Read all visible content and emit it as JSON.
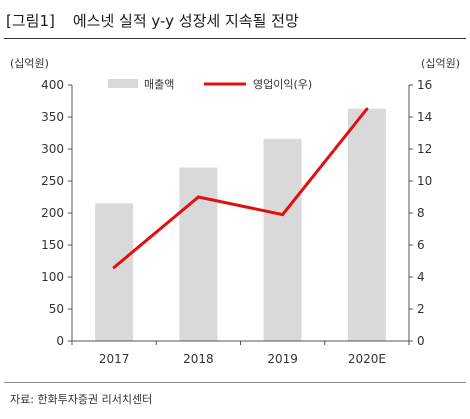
{
  "header": {
    "tag": "[그림1]",
    "title": "에스넷 실적 y-y 성장세 지속될 전망"
  },
  "source": "자료: 한화투자증권 리서치센터",
  "chart_data": {
    "type": "bar",
    "categories": [
      "2017",
      "2018",
      "2019",
      "2020E"
    ],
    "series": [
      {
        "name": "매출액",
        "type": "bar",
        "axis": "left",
        "color": "#d9d9d9",
        "values": [
          215,
          271,
          316,
          363
        ]
      },
      {
        "name": "영업이익(우)",
        "type": "line",
        "axis": "right",
        "color": "#e01010",
        "values": [
          4.6,
          9.0,
          7.9,
          14.5
        ]
      }
    ],
    "y_left": {
      "unit": "(십억원)",
      "ylim": [
        0,
        400
      ],
      "ticks": [
        0,
        50,
        100,
        150,
        200,
        250,
        300,
        350,
        400
      ]
    },
    "y_right": {
      "unit": "(십억원)",
      "ylim": [
        0,
        16
      ],
      "ticks": [
        0,
        2,
        4,
        6,
        8,
        10,
        12,
        14,
        16
      ]
    },
    "legend": "top",
    "grid": false
  }
}
